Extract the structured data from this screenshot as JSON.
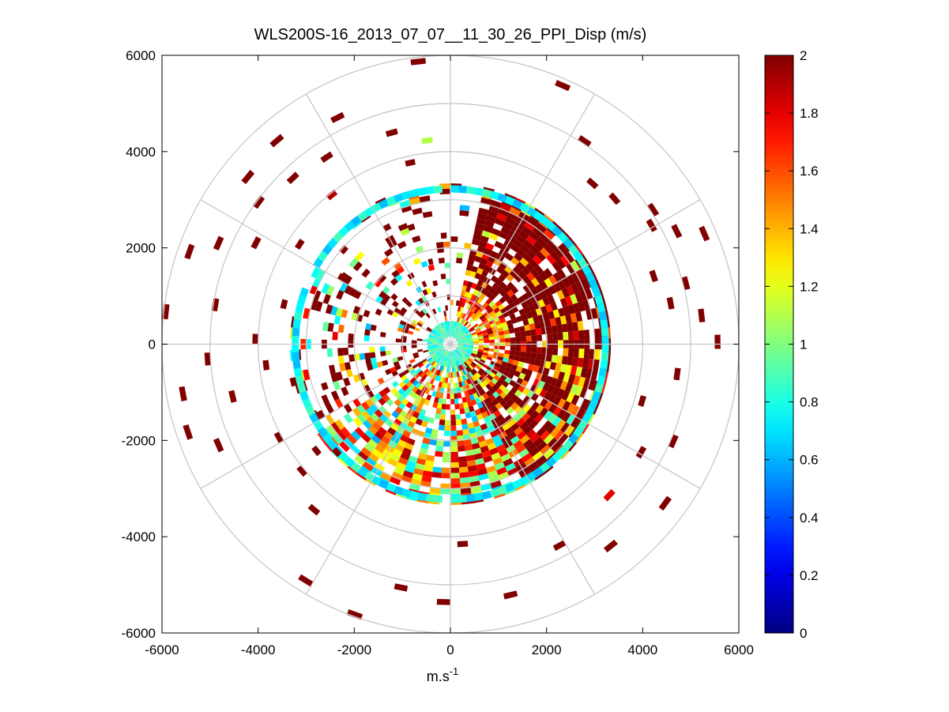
{
  "chart_data": {
    "type": "heatmap",
    "subtype": "polar-ppi",
    "title": "WLS200S-16_2013_07_07__11_30_26_PPI_Disp (m/s)",
    "xlabel": "m.s",
    "xlabel_sup": "-1",
    "ylabel": "",
    "xlim": [
      -6000,
      6000
    ],
    "ylim": [
      -6000,
      6000
    ],
    "x_ticks": [
      -6000,
      -4000,
      -2000,
      0,
      2000,
      4000,
      6000
    ],
    "y_ticks": [
      6000,
      4000,
      2000,
      0,
      -2000,
      -4000,
      -6000
    ],
    "x_tick_labels": [
      "-6000",
      "-4000",
      "-2000",
      "0",
      "2000",
      "4000",
      "6000"
    ],
    "y_tick_labels": [
      "6000",
      "4000",
      "2000",
      "0",
      "-2000",
      "-4000",
      "-6000"
    ],
    "polar_rings_m": [
      1000,
      2000,
      3000,
      4000,
      5000,
      6000
    ],
    "polar_spokes_deg": [
      0,
      30,
      60,
      90,
      120,
      150,
      180,
      210,
      240,
      270,
      300,
      330
    ],
    "colorbar": {
      "min": 0,
      "max": 2,
      "colormap": "jet",
      "ticks": [
        0,
        0.2,
        0.4,
        0.6,
        0.8,
        1,
        1.2,
        1.4,
        1.6,
        1.8,
        2
      ],
      "tick_labels": [
        "0",
        "0.2",
        "0.4",
        "0.6",
        "0.8",
        "1",
        "1.2",
        "1.4",
        "1.6",
        "1.8",
        "2"
      ]
    },
    "dense_region": {
      "description": "Dense coverage inside about 3300 m, strongest from about 15 to 175 degrees azimuth; values mostly 1.6-2 in the east sector and 0.6-1.4 in the south",
      "r_max_m": 3300,
      "outer_ring_value": 0.75
    },
    "sparse_returns": [
      {
        "az": 352,
        "r": 5850,
        "v": 2
      },
      {
        "az": 22,
        "r": 5800,
        "v": 2
      },
      {
        "az": 332,
        "r": 5200,
        "v": 2
      },
      {
        "az": 318,
        "r": 5500,
        "v": 2
      },
      {
        "az": 308,
        "r": 5400,
        "v": 2
      },
      {
        "az": 305,
        "r": 4900,
        "v": 2
      },
      {
        "az": 315,
        "r": 4700,
        "v": 2
      },
      {
        "az": 325,
        "r": 4600,
        "v": 2
      },
      {
        "az": 343,
        "r": 4500,
        "v": 2
      },
      {
        "az": 352,
        "r": 4200,
        "v": 1.1
      },
      {
        "az": 346,
        "r": 3800,
        "v": 2
      },
      {
        "az": 320,
        "r": 3900,
        "v": 1.9
      },
      {
        "az": 32,
        "r": 5000,
        "v": 2
      },
      {
        "az": 40,
        "r": 4400,
        "v": 2
      },
      {
        "az": 47,
        "r": 4500,
        "v": 2
      },
      {
        "az": 55,
        "r": 5000,
        "v": 2
      },
      {
        "az": 58,
        "r": 4800,
        "v": 2
      },
      {
        "az": 62,
        "r": 5200,
        "v": 2
      },
      {
        "az": 65,
        "r": 5700,
        "v": 2
      },
      {
        "az": 70,
        "r": 4400,
        "v": 2
      },
      {
        "az": 74,
        "r": 5000,
        "v": 2
      },
      {
        "az": 78,
        "r": 4600,
        "v": 2
      },
      {
        "az": 82,
        "r": 5200,
        "v": 2
      },
      {
        "az": 88,
        "r": 5500,
        "v": 2
      },
      {
        "az": 96,
        "r": 4700,
        "v": 2
      },
      {
        "az": 105,
        "r": 4100,
        "v": 2
      },
      {
        "az": 112,
        "r": 5000,
        "v": 2
      },
      {
        "az": 118,
        "r": 4500,
        "v": 2
      },
      {
        "az": 125,
        "r": 5500,
        "v": 2
      },
      {
        "az": 132,
        "r": 4500,
        "v": 1.8
      },
      {
        "az": 140,
        "r": 5300,
        "v": 2
      },
      {
        "az": 150,
        "r": 4700,
        "v": 2
      },
      {
        "az": 165,
        "r": 5300,
        "v": 2
      },
      {
        "az": 175,
        "r": 4100,
        "v": 2
      },
      {
        "az": 180,
        "r": 5300,
        "v": 2
      },
      {
        "az": 190,
        "r": 5100,
        "v": 2
      },
      {
        "az": 198,
        "r": 5900,
        "v": 2
      },
      {
        "az": 210,
        "r": 5700,
        "v": 2
      },
      {
        "az": 218,
        "r": 4400,
        "v": 2
      },
      {
        "az": 228,
        "r": 4000,
        "v": 2
      },
      {
        "az": 240,
        "r": 4000,
        "v": 2
      },
      {
        "az": 245,
        "r": 5200,
        "v": 2
      },
      {
        "az": 250,
        "r": 5700,
        "v": 2
      },
      {
        "az": 255,
        "r": 4600,
        "v": 2
      },
      {
        "az": 258,
        "r": 5600,
        "v": 2
      },
      {
        "az": 262,
        "r": 3800,
        "v": 2
      },
      {
        "az": 265,
        "r": 5000,
        "v": 2
      },
      {
        "az": 270,
        "r": 4000,
        "v": 2
      },
      {
        "az": 275,
        "r": 5900,
        "v": 2
      },
      {
        "az": 278,
        "r": 4900,
        "v": 2
      },
      {
        "az": 282,
        "r": 3500,
        "v": 2
      },
      {
        "az": 288,
        "r": 5700,
        "v": 2
      },
      {
        "az": 292,
        "r": 5200,
        "v": 2
      },
      {
        "az": 296,
        "r": 4500,
        "v": 2
      },
      {
        "az": 302,
        "r": 3700,
        "v": 2
      },
      {
        "az": 290,
        "r": 3000,
        "v": 1.8
      },
      {
        "az": 250,
        "r": 2700,
        "v": 2
      },
      {
        "az": 240,
        "r": 3000,
        "v": 2
      },
      {
        "az": 230,
        "r": 3500,
        "v": 2
      },
      {
        "az": 225,
        "r": 3200,
        "v": 2
      },
      {
        "az": 255,
        "r": 3300,
        "v": 2
      },
      {
        "az": 300,
        "r": 2600,
        "v": 2
      },
      {
        "az": 310,
        "r": 2900,
        "v": 2
      },
      {
        "az": 330,
        "r": 2700,
        "v": 2
      },
      {
        "az": 340,
        "r": 2500,
        "v": 2
      },
      {
        "az": 355,
        "r": 2200,
        "v": 2
      },
      {
        "az": 345,
        "r": 1700,
        "v": 2
      },
      {
        "az": 335,
        "r": 1300,
        "v": 2
      }
    ]
  }
}
